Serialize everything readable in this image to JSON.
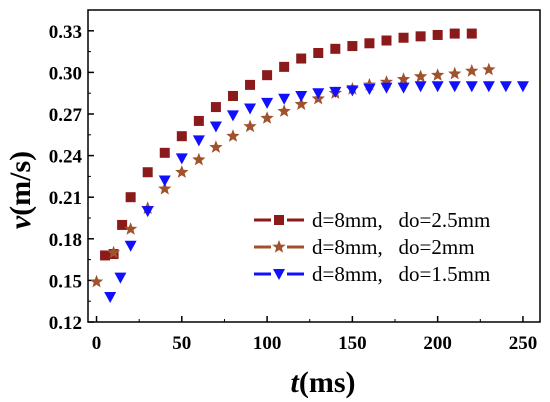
{
  "chart_data": {
    "type": "scatter",
    "title": "",
    "xlabel": {
      "var": "t",
      "unit": "(ms)"
    },
    "ylabel": {
      "var": "v",
      "unit": "(m/s)"
    },
    "xlim": [
      -5,
      260
    ],
    "ylim": [
      0.12,
      0.345
    ],
    "xticks": [
      0,
      50,
      100,
      150,
      200,
      250
    ],
    "yticks": [
      0.12,
      0.15,
      0.18,
      0.21,
      0.24,
      0.27,
      0.3,
      0.33
    ],
    "ytick_labels": [
      "0.12",
      "0.15",
      "0.18",
      "0.21",
      "0.24",
      "0.27",
      "0.30",
      "0.33"
    ],
    "grid": false,
    "legend_position": "bottom-right",
    "series": [
      {
        "name": "d=8mm,   do=2.5mm",
        "color": "#8B1A1A",
        "marker": "square",
        "x": [
          5,
          10,
          15,
          20,
          30,
          40,
          50,
          60,
          70,
          80,
          90,
          100,
          110,
          120,
          130,
          140,
          150,
          160,
          170,
          180,
          190,
          200,
          210,
          220
        ],
        "y": [
          0.168,
          0.169,
          0.19,
          0.21,
          0.228,
          0.242,
          0.254,
          0.265,
          0.275,
          0.283,
          0.291,
          0.298,
          0.304,
          0.31,
          0.314,
          0.317,
          0.319,
          0.321,
          0.323,
          0.325,
          0.326,
          0.327,
          0.328,
          0.328
        ]
      },
      {
        "name": "d=8mm,   do=2mm",
        "color": "#A0522D",
        "marker": "star",
        "x": [
          0,
          10,
          20,
          30,
          40,
          50,
          60,
          70,
          80,
          90,
          100,
          110,
          120,
          130,
          140,
          150,
          160,
          170,
          180,
          190,
          200,
          210,
          220,
          230
        ],
        "y": [
          0.149,
          0.17,
          0.187,
          0.202,
          0.216,
          0.228,
          0.237,
          0.246,
          0.254,
          0.261,
          0.267,
          0.272,
          0.277,
          0.281,
          0.285,
          0.288,
          0.291,
          0.293,
          0.295,
          0.297,
          0.298,
          0.299,
          0.301,
          0.302
        ]
      },
      {
        "name": "d=8mm,   do=1.5mm",
        "color": "#1010FF",
        "marker": "triangle-down",
        "x": [
          8,
          14,
          20,
          30,
          40,
          50,
          60,
          70,
          80,
          90,
          100,
          110,
          120,
          130,
          140,
          150,
          160,
          170,
          180,
          190,
          200,
          210,
          220,
          230,
          240,
          250
        ],
        "y": [
          0.138,
          0.152,
          0.175,
          0.2,
          0.222,
          0.238,
          0.251,
          0.261,
          0.269,
          0.274,
          0.278,
          0.281,
          0.283,
          0.285,
          0.286,
          0.287,
          0.288,
          0.289,
          0.289,
          0.29,
          0.29,
          0.29,
          0.29,
          0.29,
          0.29,
          0.29
        ]
      }
    ]
  }
}
